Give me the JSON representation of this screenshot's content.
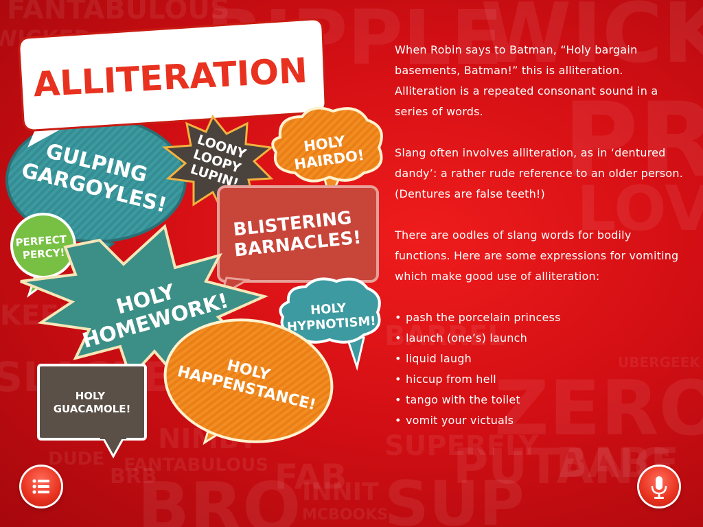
{
  "background_words": [
    "FANTABULOUS",
    "RIPPLE",
    "WICKED",
    "WICK",
    "PROFF",
    "LOVE",
    "BARREL",
    "DUDE",
    "SUPERFLY",
    "ZERO",
    "BRO",
    "NIMBY",
    "KEEN",
    "PUTANG",
    "FANTABULOUS",
    "BABE",
    "UBERGEEK",
    "SLACKER",
    "MCBOOKS",
    "BRB",
    "INNIT",
    "SUP",
    "FAB"
  ],
  "title": "ALLITERATION",
  "bubbles": {
    "gulping": [
      "GULPING",
      "GARGOYLES!"
    ],
    "loony": [
      "LOONY",
      "LOOPY",
      "LUPIN!"
    ],
    "hairdo": [
      "HOLY",
      "HAIRDO!"
    ],
    "perfect": [
      "PERFECT",
      "PERCY!"
    ],
    "blistering": [
      "BLISTERING",
      "BARNACLES!"
    ],
    "homework": [
      "HOLY",
      "HOMEWORK!"
    ],
    "hypnotism": [
      "HOLY",
      "HYPNOTISM!"
    ],
    "happenstance": [
      "HOLY",
      "HAPPENSTANCE!"
    ],
    "guacamole": [
      "HOLY",
      "GUACAMOLE!"
    ]
  },
  "content": {
    "para1": "When Robin says to Batman, “Holy bargain basements, Batman!” this is alliteration. Alliteration is a repeated consonant sound in a series of words.",
    "para2": "Slang often involves alliteration, as in ‘dentured dandy’: a rather rude reference to an older person. (Dentures are false teeth!)",
    "para3": "There are oodles of slang words for bodily functions. Here are some expressions for vomiting which make good use of alliteration:",
    "list": [
      "pash the porcelain princess",
      "launch (one’s) launch",
      "liquid laugh",
      "hiccup from hell",
      "tango with the toilet",
      "vomit your victuals"
    ]
  },
  "buttons": {
    "menu_icon": "list-menu-icon",
    "mic_icon": "microphone-icon"
  },
  "colors": {
    "background": "#d30f14",
    "title_text": "#e8321f",
    "teal": "#3a9a9a",
    "orange": "#f28a1e",
    "green": "#77c043",
    "brick": "#c8453a",
    "dark": "#5a5048"
  }
}
